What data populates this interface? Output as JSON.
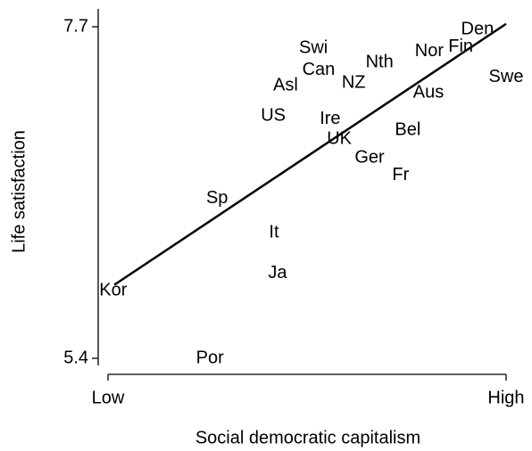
{
  "chart_data": {
    "type": "scatter",
    "x_label": "Social democratic capitalism",
    "y_label": "Life satisfaction",
    "labels": [
      "Den",
      "Fin",
      "Nor",
      "Swe",
      "Nth",
      "Swi",
      "Can",
      "NZ",
      "Asl",
      "Aus",
      "US",
      "Ire",
      "Bel",
      "UK",
      "Ger",
      "Fr",
      "Sp",
      "It",
      "Ja",
      "Kor",
      "Por"
    ],
    "x": [
      0.928,
      0.886,
      0.807,
      1.0,
      0.682,
      0.516,
      0.529,
      0.617,
      0.446,
      0.805,
      0.415,
      0.558,
      0.753,
      0.581,
      0.657,
      0.735,
      0.274,
      0.417,
      0.426,
      0.013,
      0.256
    ],
    "values": [
      7.68,
      7.56,
      7.53,
      7.35,
      7.45,
      7.55,
      7.4,
      7.31,
      7.29,
      7.24,
      7.08,
      7.06,
      6.98,
      6.92,
      6.79,
      6.67,
      6.51,
      6.27,
      5.99,
      5.87,
      5.4
    ],
    "fit": {
      "x": [
        0.016,
        1.0
      ],
      "values": [
        5.91,
        7.72
      ]
    },
    "color": "#000000",
    "xlim": [
      0,
      1
    ],
    "xticks": [
      {
        "value": 0,
        "label": "Low"
      },
      {
        "value": 1,
        "label": "High"
      }
    ],
    "ylim": [
      5.4,
      7.7
    ],
    "yticks": [
      5.4,
      7.7
    ]
  }
}
